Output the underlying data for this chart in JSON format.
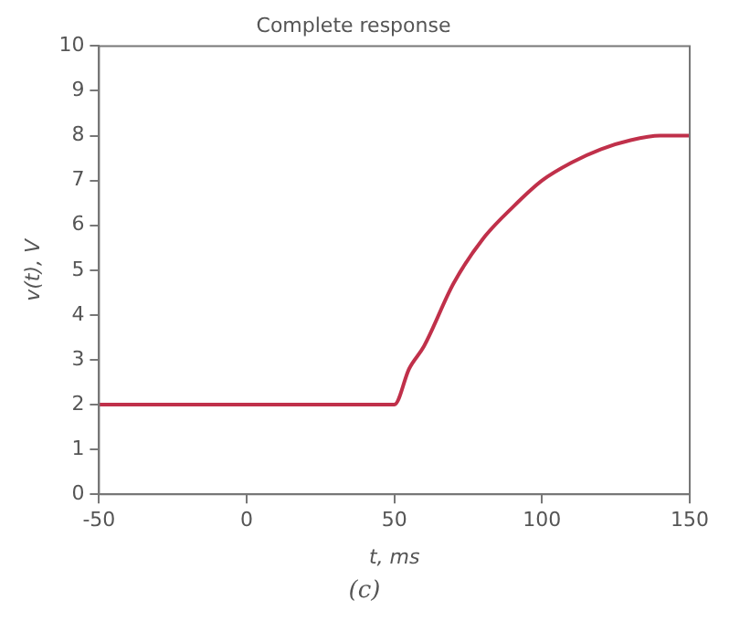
{
  "chart_data": {
    "type": "line",
    "title": "Complete response",
    "xlabel": "t, ms",
    "ylabel": "v(t), V",
    "annotations": [
      "(c)"
    ],
    "x": [
      -50,
      0,
      50,
      55,
      60,
      70,
      80,
      90,
      100,
      110,
      120,
      130,
      140,
      150
    ],
    "series": [
      {
        "color": "#c0304a",
        "values": [
          2,
          2,
          2,
          2.8,
          3.3,
          4.7,
          5.7,
          6.4,
          7.0,
          7.4,
          7.7,
          7.9,
          8.0,
          8.0
        ]
      }
    ],
    "xlim": [
      -50,
      150
    ],
    "xticks": [
      -50,
      0,
      50,
      100,
      150
    ],
    "ylim": [
      0,
      10
    ],
    "yticks": [
      0,
      1,
      2,
      3,
      4,
      5,
      6,
      7,
      8,
      9,
      10
    ],
    "grid": false,
    "legend": false,
    "marker": "none",
    "line_style": "solid"
  }
}
